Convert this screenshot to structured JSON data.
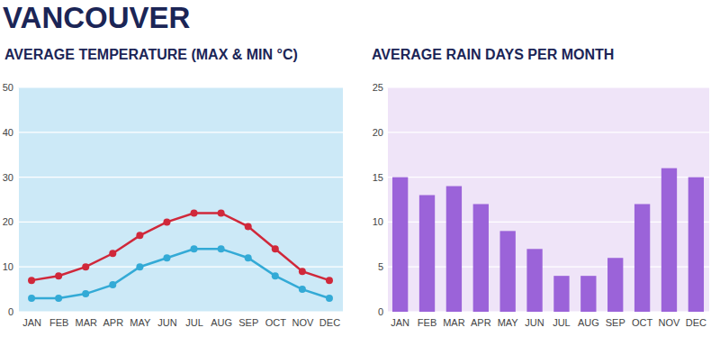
{
  "title": "VANCOUVER",
  "chart_data": [
    {
      "type": "line",
      "title": "AVERAGE TEMPERATURE (MAX & MIN °C)",
      "categories": [
        "JAN",
        "FEB",
        "MAR",
        "APR",
        "MAY",
        "JUN",
        "JUL",
        "AUG",
        "SEP",
        "OCT",
        "NOV",
        "DEC"
      ],
      "series": [
        {
          "color": "#d0283a",
          "marker": "circle",
          "line_style": "solid",
          "values": [
            7,
            8,
            10,
            13,
            17,
            20,
            22,
            22,
            19,
            14,
            9,
            7
          ]
        },
        {
          "color": "#33aad6",
          "marker": "circle",
          "line_style": "solid",
          "values": [
            3,
            3,
            4,
            6,
            10,
            12,
            14,
            14,
            12,
            8,
            5,
            3
          ]
        }
      ],
      "ylim": [
        0,
        50
      ],
      "yticks": [
        0,
        10,
        20,
        30,
        40,
        50
      ],
      "grid": true
    },
    {
      "type": "bar",
      "title": "AVERAGE RAIN DAYS PER MONTH",
      "categories": [
        "JAN",
        "FEB",
        "MAR",
        "APR",
        "MAY",
        "JUN",
        "JUL",
        "AUG",
        "SEP",
        "OCT",
        "NOV",
        "DEC"
      ],
      "values": [
        15,
        13,
        14,
        12,
        9,
        7,
        4,
        4,
        6,
        12,
        16,
        15
      ],
      "color": "#9b63d9",
      "ylim": [
        0,
        25
      ],
      "yticks": [
        0,
        5,
        10,
        15,
        20,
        25
      ],
      "grid": true
    }
  ]
}
